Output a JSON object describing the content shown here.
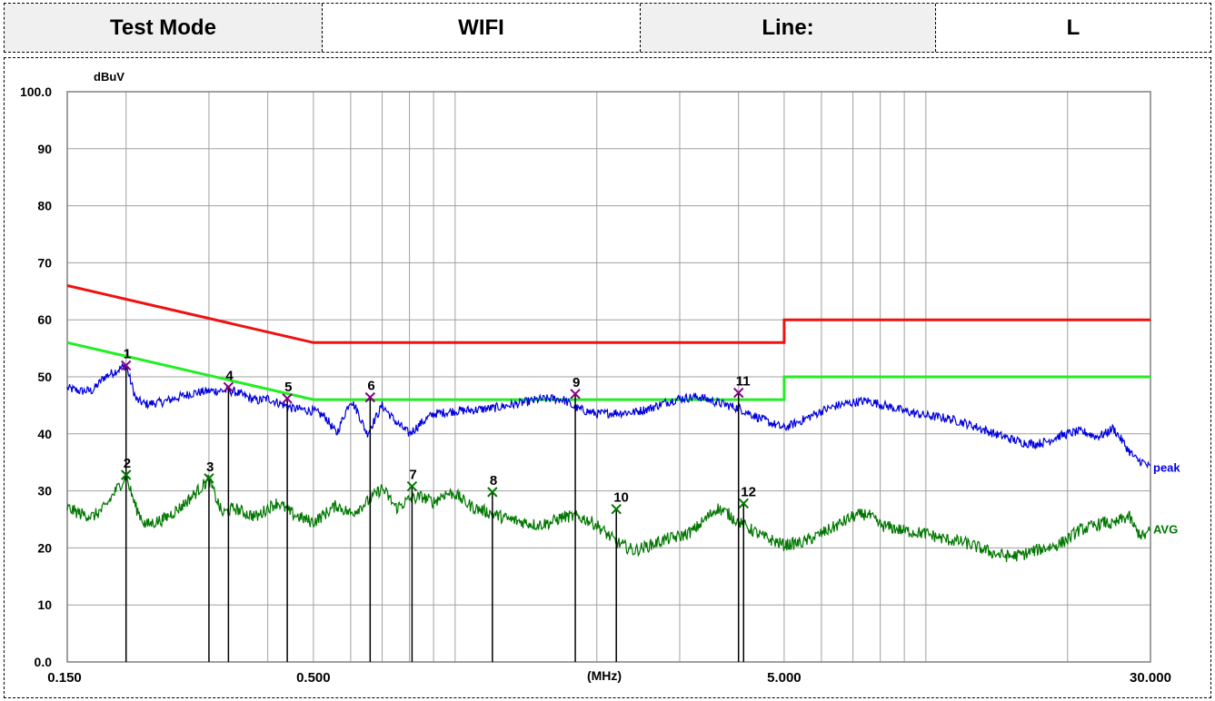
{
  "header": {
    "cells": [
      {
        "text": "Test Mode",
        "kind": "label"
      },
      {
        "text": "WIFI",
        "kind": "value"
      },
      {
        "text": "Line:",
        "kind": "label"
      },
      {
        "text": "L",
        "kind": "value"
      }
    ]
  },
  "chart_data": {
    "type": "line",
    "title": "",
    "xlabel": "(MHz)",
    "ylabel": "dBuV",
    "x_scale": "log",
    "xlim": [
      0.15,
      30
    ],
    "ylim": [
      0,
      100
    ],
    "grid": true,
    "x_tick_labels": [
      {
        "value": 0.15,
        "label": "0.150"
      },
      {
        "value": 0.5,
        "label": "0.500"
      },
      {
        "value": 5,
        "label": "5.000"
      },
      {
        "value": 30,
        "label": "30.000"
      }
    ],
    "y_tick_labels": [
      {
        "value": 0,
        "label": "0.0"
      },
      {
        "value": 10,
        "label": "10"
      },
      {
        "value": 20,
        "label": "20"
      },
      {
        "value": 30,
        "label": "30"
      },
      {
        "value": 40,
        "label": "40"
      },
      {
        "value": 50,
        "label": "50"
      },
      {
        "value": 60,
        "label": "60"
      },
      {
        "value": 70,
        "label": "70"
      },
      {
        "value": 80,
        "label": "80"
      },
      {
        "value": 90,
        "label": "90"
      },
      {
        "value": 100,
        "label": "100.0"
      }
    ],
    "colors": {
      "qp_limit": "#ee1111",
      "avg_limit": "#22ee22",
      "peak": "#0000dd",
      "avg": "#007700",
      "marker_peak": "#880088",
      "marker_avg": "#007700",
      "grid": "#a0a0a0"
    },
    "limit_lines": [
      {
        "key": "qp_limit",
        "points": [
          [
            0.15,
            66
          ],
          [
            0.5,
            56
          ],
          [
            5,
            56
          ],
          [
            5,
            60
          ],
          [
            30,
            60
          ]
        ]
      },
      {
        "key": "avg_limit",
        "points": [
          [
            0.15,
            56
          ],
          [
            0.5,
            46
          ],
          [
            5,
            46
          ],
          [
            5,
            50
          ],
          [
            30,
            50
          ]
        ]
      }
    ],
    "series": [
      {
        "name": "peak",
        "key": "peak",
        "points": [
          [
            0.15,
            48
          ],
          [
            0.16,
            47.5
          ],
          [
            0.17,
            47.6
          ],
          [
            0.18,
            50
          ],
          [
            0.19,
            51
          ],
          [
            0.2,
            52
          ],
          [
            0.21,
            46
          ],
          [
            0.22,
            45.2
          ],
          [
            0.24,
            45.6
          ],
          [
            0.26,
            46.5
          ],
          [
            0.28,
            47.2
          ],
          [
            0.3,
            47.5
          ],
          [
            0.32,
            47.6
          ],
          [
            0.34,
            47.4
          ],
          [
            0.36,
            46.5
          ],
          [
            0.38,
            45.8
          ],
          [
            0.4,
            46.2
          ],
          [
            0.42,
            45.5
          ],
          [
            0.45,
            44.5
          ],
          [
            0.48,
            44.2
          ],
          [
            0.5,
            44
          ],
          [
            0.53,
            43
          ],
          [
            0.56,
            40
          ],
          [
            0.6,
            46
          ],
          [
            0.62,
            44
          ],
          [
            0.65,
            40
          ],
          [
            0.68,
            43
          ],
          [
            0.7,
            45
          ],
          [
            0.75,
            42
          ],
          [
            0.8,
            40
          ],
          [
            0.85,
            42
          ],
          [
            0.9,
            43.5
          ],
          [
            1.0,
            44
          ],
          [
            1.1,
            44.2
          ],
          [
            1.2,
            44.5
          ],
          [
            1.3,
            45
          ],
          [
            1.4,
            45.5
          ],
          [
            1.5,
            46
          ],
          [
            1.6,
            46.2
          ],
          [
            1.7,
            46
          ],
          [
            1.8,
            44.5
          ],
          [
            1.9,
            44
          ],
          [
            2.0,
            43.5
          ],
          [
            2.2,
            43.7
          ],
          [
            2.4,
            43.8
          ],
          [
            2.6,
            44.5
          ],
          [
            2.8,
            45.5
          ],
          [
            3.0,
            46.2
          ],
          [
            3.3,
            46.5
          ],
          [
            3.6,
            45.5
          ],
          [
            4.0,
            44.5
          ],
          [
            4.5,
            42.5
          ],
          [
            5.0,
            41
          ],
          [
            5.5,
            42.5
          ],
          [
            6.0,
            44
          ],
          [
            6.5,
            45
          ],
          [
            7.0,
            45.5
          ],
          [
            7.5,
            45.8
          ],
          [
            8.0,
            45.2
          ],
          [
            9.0,
            44
          ],
          [
            10.0,
            43.2
          ],
          [
            11.0,
            42.8
          ],
          [
            12.0,
            42
          ],
          [
            13.0,
            41
          ],
          [
            14.0,
            40
          ],
          [
            15.0,
            39.2
          ],
          [
            16.0,
            38.5
          ],
          [
            17.0,
            38.2
          ],
          [
            18.0,
            38.6
          ],
          [
            19.0,
            39.5
          ],
          [
            20.0,
            40
          ],
          [
            21.0,
            40.4
          ],
          [
            22.0,
            40.2
          ],
          [
            23.0,
            39.5
          ],
          [
            24.0,
            40
          ],
          [
            25.0,
            41
          ],
          [
            26.0,
            39
          ],
          [
            27.0,
            37
          ],
          [
            28.0,
            35.5
          ],
          [
            29.0,
            35
          ],
          [
            30.0,
            34
          ]
        ]
      },
      {
        "name": "AVG",
        "key": "avg",
        "points": [
          [
            0.15,
            27
          ],
          [
            0.16,
            26
          ],
          [
            0.17,
            25.5
          ],
          [
            0.18,
            27
          ],
          [
            0.19,
            30
          ],
          [
            0.2,
            32.5
          ],
          [
            0.21,
            27
          ],
          [
            0.22,
            24
          ],
          [
            0.24,
            25
          ],
          [
            0.26,
            27
          ],
          [
            0.28,
            29.5
          ],
          [
            0.3,
            32
          ],
          [
            0.32,
            26
          ],
          [
            0.34,
            27
          ],
          [
            0.36,
            26
          ],
          [
            0.38,
            25.5
          ],
          [
            0.4,
            27
          ],
          [
            0.42,
            28
          ],
          [
            0.45,
            26
          ],
          [
            0.48,
            25
          ],
          [
            0.5,
            24.5
          ],
          [
            0.53,
            26
          ],
          [
            0.56,
            27.5
          ],
          [
            0.6,
            26
          ],
          [
            0.65,
            28
          ],
          [
            0.7,
            30.5
          ],
          [
            0.75,
            27
          ],
          [
            0.8,
            28.5
          ],
          [
            0.85,
            29
          ],
          [
            0.9,
            28
          ],
          [
            0.95,
            29.5
          ],
          [
            1.0,
            29.5
          ],
          [
            1.05,
            28
          ],
          [
            1.1,
            27
          ],
          [
            1.2,
            26
          ],
          [
            1.3,
            25
          ],
          [
            1.4,
            24.5
          ],
          [
            1.5,
            24
          ],
          [
            1.6,
            24.5
          ],
          [
            1.7,
            25.5
          ],
          [
            1.8,
            25.5
          ],
          [
            1.9,
            25
          ],
          [
            2.0,
            24
          ],
          [
            2.2,
            21
          ],
          [
            2.4,
            19.5
          ],
          [
            2.6,
            20.5
          ],
          [
            2.8,
            21.5
          ],
          [
            3.0,
            22
          ],
          [
            3.2,
            23
          ],
          [
            3.4,
            25
          ],
          [
            3.6,
            27
          ],
          [
            3.8,
            26
          ],
          [
            4.0,
            24.5
          ],
          [
            4.5,
            22
          ],
          [
            5.0,
            20.5
          ],
          [
            5.5,
            21
          ],
          [
            6.0,
            22.5
          ],
          [
            6.5,
            24
          ],
          [
            7.0,
            25.5
          ],
          [
            7.5,
            26
          ],
          [
            8.0,
            24
          ],
          [
            8.5,
            23.5
          ],
          [
            9.0,
            23
          ],
          [
            10.0,
            22.5
          ],
          [
            11.0,
            21.5
          ],
          [
            12.0,
            21
          ],
          [
            13.0,
            20
          ],
          [
            14.0,
            19
          ],
          [
            15.0,
            18.5
          ],
          [
            16.0,
            18.8
          ],
          [
            17.0,
            19.5
          ],
          [
            18.0,
            20
          ],
          [
            19.0,
            20.5
          ],
          [
            20.0,
            21.5
          ],
          [
            21.0,
            23
          ],
          [
            22.0,
            23.5
          ],
          [
            23.0,
            24
          ],
          [
            24.0,
            24.5
          ],
          [
            25.0,
            24
          ],
          [
            26.0,
            25
          ],
          [
            27.0,
            25.5
          ],
          [
            28.0,
            23
          ],
          [
            29.0,
            22
          ],
          [
            30.0,
            23
          ]
        ]
      }
    ],
    "markers": [
      {
        "label": "1",
        "type": "peak",
        "x": 0.2,
        "y": 52
      },
      {
        "label": "2",
        "type": "avg",
        "x": 0.2,
        "y": 32.8
      },
      {
        "label": "3",
        "type": "avg",
        "x": 0.3,
        "y": 32.2
      },
      {
        "label": "4",
        "type": "peak",
        "x": 0.33,
        "y": 48.2
      },
      {
        "label": "5",
        "type": "peak",
        "x": 0.44,
        "y": 46.2
      },
      {
        "label": "6",
        "type": "peak",
        "x": 0.66,
        "y": 46.4
      },
      {
        "label": "7",
        "type": "avg",
        "x": 0.81,
        "y": 30.8
      },
      {
        "label": "8",
        "type": "avg",
        "x": 1.2,
        "y": 29.8
      },
      {
        "label": "9",
        "type": "peak",
        "x": 1.8,
        "y": 47
      },
      {
        "label": "10",
        "type": "avg",
        "x": 2.2,
        "y": 26.8
      },
      {
        "label": "11",
        "type": "peak",
        "x": 4.0,
        "y": 47.2
      },
      {
        "label": "12",
        "type": "avg",
        "x": 4.1,
        "y": 27.8
      }
    ]
  }
}
